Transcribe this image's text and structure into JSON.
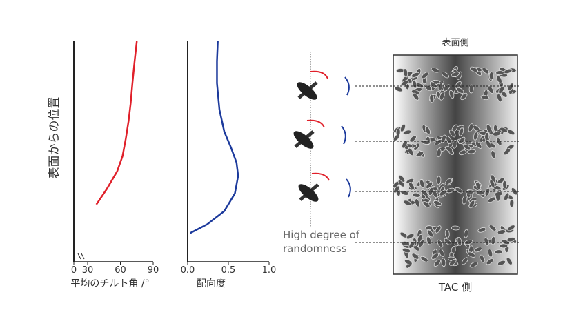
{
  "chart_data": [
    {
      "type": "line",
      "xlabel": "平均のチルト角 /°",
      "ylabel": "表面からの位置",
      "xlim": [
        0,
        90
      ],
      "xticks": [
        0,
        30,
        60,
        90
      ],
      "axis_break": true,
      "ylim": [
        0,
        1
      ],
      "series": [
        {
          "color": "#e0202a",
          "x": [
            38,
            47.5,
            57,
            62,
            65,
            67.5,
            69.4,
            71,
            73,
            75
          ],
          "y": [
            0.26,
            0.33,
            0.41,
            0.48,
            0.56,
            0.64,
            0.72,
            0.81,
            0.91,
            1.0
          ]
        }
      ]
    },
    {
      "type": "line",
      "xlabel": "配向度",
      "xlim": [
        0,
        1
      ],
      "xticks": [
        {
          "value": 0,
          "label": "0.0"
        },
        0.5,
        {
          "value": 1,
          "label": "1.0"
        }
      ],
      "ylim": [
        0,
        1
      ],
      "series": [
        {
          "color": "#1c3a9c",
          "x": [
            0.03,
            0.24,
            0.45,
            0.58,
            0.62,
            0.6,
            0.53,
            0.45,
            0.39,
            0.36,
            0.36,
            0.37
          ],
          "y": [
            0.13,
            0.17,
            0.23,
            0.31,
            0.39,
            0.45,
            0.52,
            0.59,
            0.69,
            0.81,
            0.91,
            1.0
          ]
        }
      ]
    }
  ],
  "diagram": {
    "top_label": "表面側",
    "bottom_label": "TAC 側",
    "note": [
      "High degree of",
      "randomness"
    ]
  }
}
